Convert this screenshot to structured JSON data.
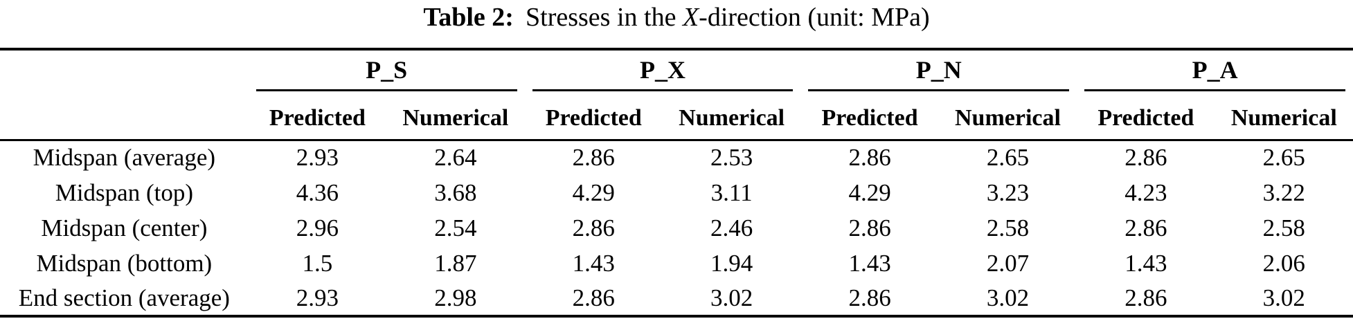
{
  "caption": {
    "label": "Table 2:",
    "pre": "Stresses in the ",
    "italic": "X",
    "post": "-direction (unit: MPa)"
  },
  "groups": [
    "P_S",
    "P_X",
    "P_N",
    "P_A"
  ],
  "column_headers": {
    "predicted": "Predicted",
    "numerical": "Numerical"
  },
  "rows": [
    {
      "label": "Midspan (average)",
      "values": [
        "2.93",
        "2.64",
        "2.86",
        "2.53",
        "2.86",
        "2.65",
        "2.86",
        "2.65"
      ]
    },
    {
      "label": "Midspan (top)",
      "values": [
        "4.36",
        "3.68",
        "4.29",
        "3.11",
        "4.29",
        "3.23",
        "4.23",
        "3.22"
      ]
    },
    {
      "label": "Midspan (center)",
      "values": [
        "2.96",
        "2.54",
        "2.86",
        "2.46",
        "2.86",
        "2.58",
        "2.86",
        "2.58"
      ]
    },
    {
      "label": "Midspan (bottom)",
      "values": [
        "1.5",
        "1.87",
        "1.43",
        "1.94",
        "1.43",
        "2.07",
        "1.43",
        "2.06"
      ]
    },
    {
      "label": "End section (average)",
      "values": [
        "2.93",
        "2.98",
        "2.86",
        "3.02",
        "2.86",
        "3.02",
        "2.86",
        "3.02"
      ]
    }
  ],
  "colors": {
    "text": "#000000",
    "rule": "#000000",
    "background": "#ffffff"
  }
}
